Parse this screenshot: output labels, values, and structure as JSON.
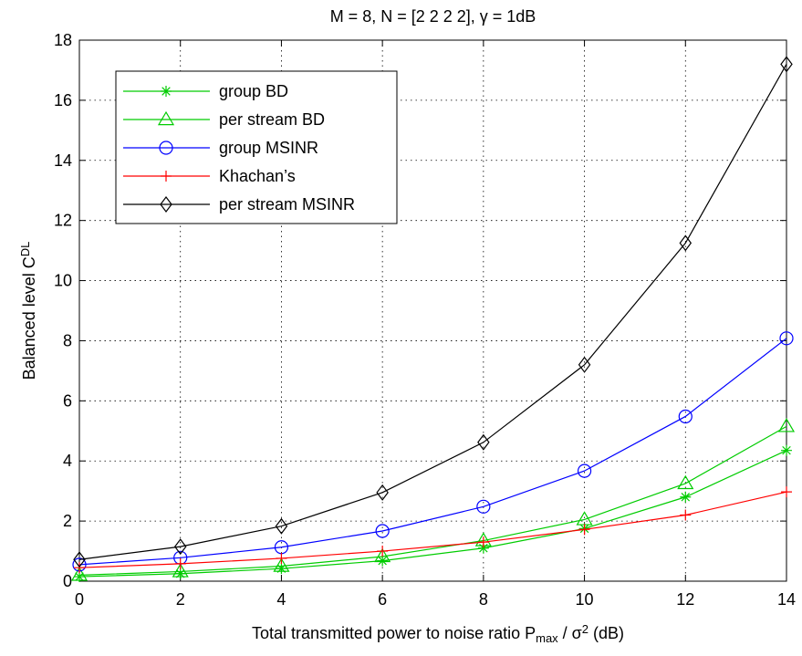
{
  "chart_data": {
    "type": "line",
    "title": "M = 8, N = [2 2 2 2], γ = 1dB",
    "xlabel": "Total transmitted power to noise ratio P_max / σ^2 (dB)",
    "ylabel": "Balanced level C^DL",
    "x": [
      0,
      2,
      4,
      6,
      8,
      10,
      12,
      14
    ],
    "xlim": [
      0,
      14
    ],
    "ylim": [
      0,
      18
    ],
    "xticks": [
      "0",
      "2",
      "4",
      "6",
      "8",
      "10",
      "12",
      "14"
    ],
    "yticks": [
      "0",
      "2",
      "4",
      "6",
      "8",
      "10",
      "12",
      "14",
      "16",
      "18"
    ],
    "grid": true,
    "legend_position": "top-left",
    "series": [
      {
        "name": "group BD",
        "color": "#00cc00",
        "marker": "asterisk",
        "values": [
          0.15,
          0.25,
          0.42,
          0.68,
          1.1,
          1.75,
          2.8,
          4.35
        ]
      },
      {
        "name": "per stream BD",
        "color": "#00cc00",
        "marker": "triangle",
        "values": [
          0.2,
          0.32,
          0.5,
          0.82,
          1.35,
          2.05,
          3.25,
          5.15
        ]
      },
      {
        "name": "group MSINR",
        "color": "#0000ff",
        "marker": "circle",
        "values": [
          0.55,
          0.78,
          1.13,
          1.67,
          2.48,
          3.67,
          5.48,
          8.08
        ]
      },
      {
        "name": "Khachan’s",
        "color": "#ff0000",
        "marker": "plus",
        "values": [
          0.45,
          0.58,
          0.76,
          1.0,
          1.3,
          1.72,
          2.2,
          2.97
        ]
      },
      {
        "name": "per stream MSINR",
        "color": "#000000",
        "marker": "diamond",
        "values": [
          0.72,
          1.15,
          1.83,
          2.95,
          4.62,
          7.2,
          11.25,
          17.2
        ]
      }
    ]
  }
}
